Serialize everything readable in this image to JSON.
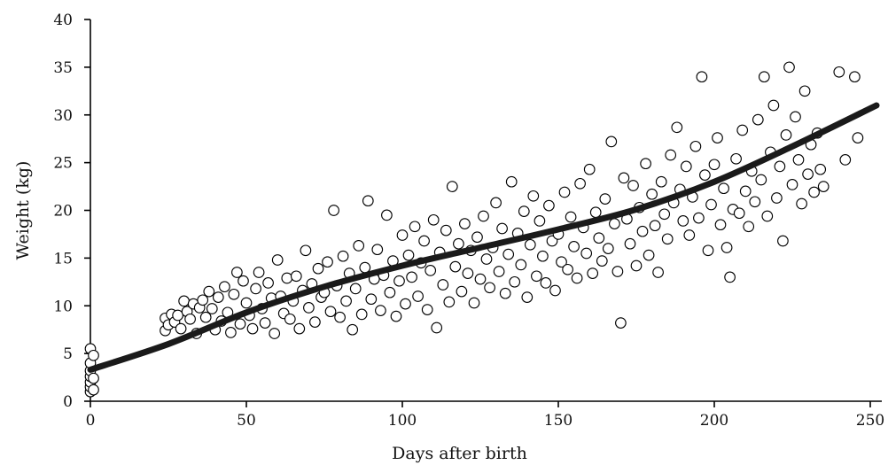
{
  "chart_data": {
    "type": "scatter",
    "title": "",
    "xlabel": "Days after birth",
    "ylabel": "Weight (kg)",
    "xlim": [
      0,
      255
    ],
    "ylim": [
      0,
      40
    ],
    "xticks": [
      0,
      50,
      100,
      150,
      200,
      250
    ],
    "yticks": [
      0,
      5,
      10,
      15,
      20,
      25,
      30,
      35,
      40
    ],
    "grid": false,
    "colors": {
      "axis": "#000000",
      "trend": "#1a1a1a",
      "marker_fill": "#ffffff",
      "marker_stroke": "#000000"
    },
    "series": [
      {
        "kind": "points",
        "points": [
          [
            0,
            1.0
          ],
          [
            0,
            1.5
          ],
          [
            0,
            2.0
          ],
          [
            0,
            2.6
          ],
          [
            0,
            3.2
          ],
          [
            0,
            4.0
          ],
          [
            0,
            5.5
          ],
          [
            1,
            1.2
          ],
          [
            1,
            2.4
          ],
          [
            1,
            4.8
          ],
          [
            24,
            7.4
          ],
          [
            24,
            8.7
          ],
          [
            25,
            8.0
          ],
          [
            26,
            9.1
          ],
          [
            27,
            8.3
          ],
          [
            28,
            9.0
          ],
          [
            29,
            7.6
          ],
          [
            30,
            10.5
          ],
          [
            31,
            9.4
          ],
          [
            32,
            8.6
          ],
          [
            33,
            10.2
          ],
          [
            34,
            7.1
          ],
          [
            35,
            9.8
          ],
          [
            36,
            10.6
          ],
          [
            37,
            8.8
          ],
          [
            38,
            11.5
          ],
          [
            39,
            9.7
          ],
          [
            40,
            7.5
          ],
          [
            41,
            10.9
          ],
          [
            42,
            8.4
          ],
          [
            43,
            12.0
          ],
          [
            44,
            9.3
          ],
          [
            45,
            7.2
          ],
          [
            46,
            11.2
          ],
          [
            47,
            13.5
          ],
          [
            48,
            8.1
          ],
          [
            49,
            12.6
          ],
          [
            50,
            10.3
          ],
          [
            51,
            9.0
          ],
          [
            52,
            7.6
          ],
          [
            53,
            11.8
          ],
          [
            54,
            13.5
          ],
          [
            55,
            9.7
          ],
          [
            56,
            8.2
          ],
          [
            57,
            12.4
          ],
          [
            58,
            10.8
          ],
          [
            59,
            7.1
          ],
          [
            60,
            14.8
          ],
          [
            61,
            11.0
          ],
          [
            62,
            9.2
          ],
          [
            63,
            12.9
          ],
          [
            64,
            8.6
          ],
          [
            65,
            10.5
          ],
          [
            66,
            13.1
          ],
          [
            67,
            7.6
          ],
          [
            68,
            11.6
          ],
          [
            69,
            15.8
          ],
          [
            70,
            9.8
          ],
          [
            71,
            12.3
          ],
          [
            72,
            8.3
          ],
          [
            73,
            13.9
          ],
          [
            74,
            10.9
          ],
          [
            75,
            11.4
          ],
          [
            76,
            14.6
          ],
          [
            77,
            9.4
          ],
          [
            78,
            20.0
          ],
          [
            79,
            12.1
          ],
          [
            80,
            8.8
          ],
          [
            81,
            15.2
          ],
          [
            82,
            10.5
          ],
          [
            83,
            13.4
          ],
          [
            84,
            7.5
          ],
          [
            85,
            11.8
          ],
          [
            86,
            16.3
          ],
          [
            87,
            9.1
          ],
          [
            88,
            14.0
          ],
          [
            89,
            21.0
          ],
          [
            90,
            10.7
          ],
          [
            91,
            12.8
          ],
          [
            92,
            15.9
          ],
          [
            93,
            9.5
          ],
          [
            94,
            13.2
          ],
          [
            95,
            19.5
          ],
          [
            96,
            11.4
          ],
          [
            97,
            14.7
          ],
          [
            98,
            8.9
          ],
          [
            99,
            12.6
          ],
          [
            100,
            17.4
          ],
          [
            101,
            10.2
          ],
          [
            102,
            15.3
          ],
          [
            103,
            13.0
          ],
          [
            104,
            18.3
          ],
          [
            105,
            11.0
          ],
          [
            106,
            14.5
          ],
          [
            107,
            16.8
          ],
          [
            108,
            9.6
          ],
          [
            109,
            13.7
          ],
          [
            110,
            19.0
          ],
          [
            111,
            7.7
          ],
          [
            112,
            15.6
          ],
          [
            113,
            12.2
          ],
          [
            114,
            17.9
          ],
          [
            115,
            10.4
          ],
          [
            116,
            22.5
          ],
          [
            117,
            14.1
          ],
          [
            118,
            16.5
          ],
          [
            119,
            11.5
          ],
          [
            120,
            18.6
          ],
          [
            121,
            13.4
          ],
          [
            122,
            15.8
          ],
          [
            123,
            10.3
          ],
          [
            124,
            17.2
          ],
          [
            125,
            12.8
          ],
          [
            126,
            19.4
          ],
          [
            127,
            14.9
          ],
          [
            128,
            11.9
          ],
          [
            129,
            16.1
          ],
          [
            130,
            20.8
          ],
          [
            131,
            13.6
          ],
          [
            132,
            18.1
          ],
          [
            133,
            11.3
          ],
          [
            134,
            15.4
          ],
          [
            135,
            23.0
          ],
          [
            136,
            12.5
          ],
          [
            137,
            17.6
          ],
          [
            138,
            14.3
          ],
          [
            139,
            19.9
          ],
          [
            140,
            10.9
          ],
          [
            141,
            16.4
          ],
          [
            142,
            21.5
          ],
          [
            143,
            13.1
          ],
          [
            144,
            18.9
          ],
          [
            145,
            15.2
          ],
          [
            146,
            12.4
          ],
          [
            147,
            20.5
          ],
          [
            148,
            16.8
          ],
          [
            149,
            11.6
          ],
          [
            150,
            17.5
          ],
          [
            151,
            14.6
          ],
          [
            152,
            21.9
          ],
          [
            153,
            13.8
          ],
          [
            154,
            19.3
          ],
          [
            155,
            16.2
          ],
          [
            156,
            12.9
          ],
          [
            157,
            22.8
          ],
          [
            158,
            18.2
          ],
          [
            159,
            15.5
          ],
          [
            160,
            24.3
          ],
          [
            161,
            13.4
          ],
          [
            162,
            19.8
          ],
          [
            163,
            17.1
          ],
          [
            164,
            14.7
          ],
          [
            165,
            21.2
          ],
          [
            166,
            16.0
          ],
          [
            167,
            27.2
          ],
          [
            168,
            18.6
          ],
          [
            169,
            13.6
          ],
          [
            170,
            8.2
          ],
          [
            171,
            23.4
          ],
          [
            172,
            19.1
          ],
          [
            173,
            16.5
          ],
          [
            174,
            22.6
          ],
          [
            175,
            14.2
          ],
          [
            176,
            20.3
          ],
          [
            177,
            17.8
          ],
          [
            178,
            24.9
          ],
          [
            179,
            15.3
          ],
          [
            180,
            21.7
          ],
          [
            181,
            18.4
          ],
          [
            182,
            13.5
          ],
          [
            183,
            23.0
          ],
          [
            184,
            19.6
          ],
          [
            185,
            17.0
          ],
          [
            186,
            25.8
          ],
          [
            187,
            20.8
          ],
          [
            188,
            28.7
          ],
          [
            189,
            22.2
          ],
          [
            190,
            18.9
          ],
          [
            191,
            24.6
          ],
          [
            192,
            17.4
          ],
          [
            193,
            21.4
          ],
          [
            194,
            26.7
          ],
          [
            195,
            19.2
          ],
          [
            196,
            34.0
          ],
          [
            197,
            23.7
          ],
          [
            198,
            15.8
          ],
          [
            199,
            20.6
          ],
          [
            200,
            24.8
          ],
          [
            201,
            27.6
          ],
          [
            202,
            18.5
          ],
          [
            203,
            22.3
          ],
          [
            204,
            16.1
          ],
          [
            205,
            13.0
          ],
          [
            206,
            20.1
          ],
          [
            207,
            25.4
          ],
          [
            208,
            19.7
          ],
          [
            209,
            28.4
          ],
          [
            210,
            22.0
          ],
          [
            211,
            18.3
          ],
          [
            212,
            24.1
          ],
          [
            213,
            20.9
          ],
          [
            214,
            29.5
          ],
          [
            215,
            23.2
          ],
          [
            216,
            34.0
          ],
          [
            217,
            19.4
          ],
          [
            218,
            26.1
          ],
          [
            219,
            31.0
          ],
          [
            220,
            21.3
          ],
          [
            221,
            24.6
          ],
          [
            222,
            16.8
          ],
          [
            223,
            27.9
          ],
          [
            224,
            35.0
          ],
          [
            225,
            22.7
          ],
          [
            226,
            29.8
          ],
          [
            227,
            25.3
          ],
          [
            228,
            20.7
          ],
          [
            229,
            32.5
          ],
          [
            230,
            23.8
          ],
          [
            231,
            26.9
          ],
          [
            232,
            21.9
          ],
          [
            233,
            28.1
          ],
          [
            234,
            24.3
          ],
          [
            235,
            22.5
          ],
          [
            240,
            34.5
          ],
          [
            242,
            25.3
          ],
          [
            245,
            34.0
          ],
          [
            246,
            27.6
          ]
        ]
      },
      {
        "kind": "trend",
        "points": [
          [
            0,
            3.3
          ],
          [
            25,
            6.0
          ],
          [
            50,
            9.3
          ],
          [
            75,
            12.0
          ],
          [
            100,
            14.2
          ],
          [
            125,
            16.1
          ],
          [
            150,
            18.0
          ],
          [
            175,
            20.1
          ],
          [
            200,
            23.0
          ],
          [
            225,
            26.7
          ],
          [
            252,
            31.0
          ]
        ]
      }
    ]
  }
}
